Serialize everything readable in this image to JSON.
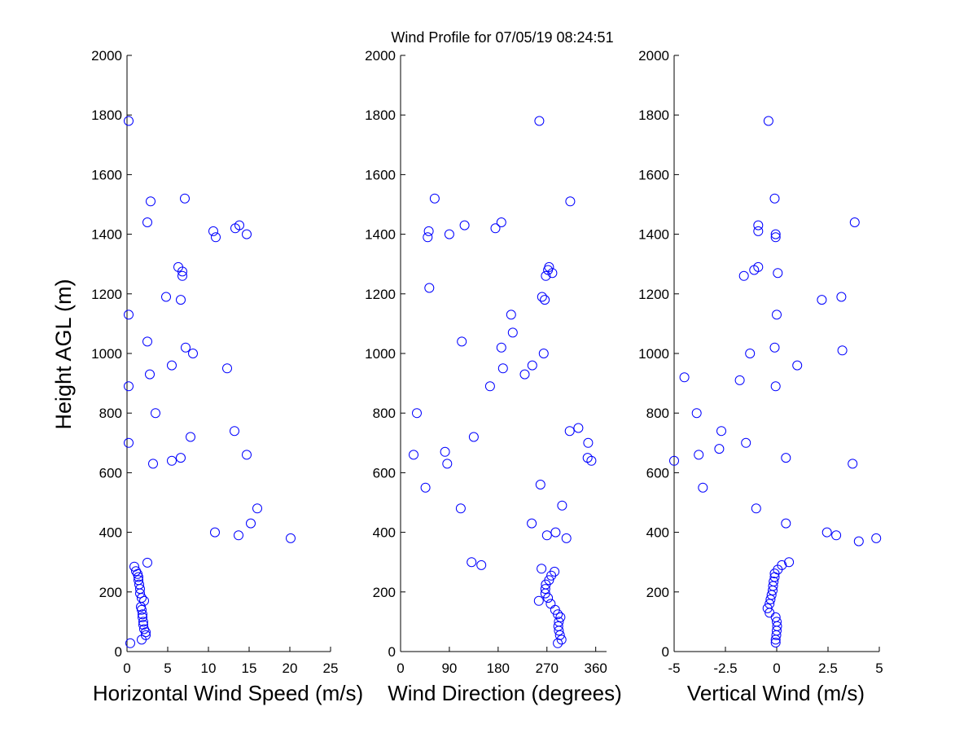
{
  "title": "Wind Profile for  07/05/19 08:24:51",
  "chart_data": [
    {
      "type": "scatter",
      "name": "horizontal-wind-speed",
      "xlabel": "Horizontal Wind Speed (m/s)",
      "ylabel": "Height AGL (m)",
      "xlim": [
        0,
        25
      ],
      "ylim": [
        0,
        2000
      ],
      "xticks": [
        0,
        5,
        10,
        15,
        20,
        25
      ],
      "xtick_labels": [
        "0",
        "5",
        "10",
        "15",
        "20",
        "25"
      ],
      "yticks": [
        0,
        200,
        400,
        600,
        800,
        1000,
        1200,
        1400,
        1600,
        1800,
        2000
      ],
      "ytick_labels": [
        "0",
        "200",
        "400",
        "600",
        "800",
        "1000",
        "1200",
        "1400",
        "1600",
        "1800",
        "2000"
      ],
      "marker_color": "#0000ff",
      "points": [
        [
          0.4,
          28
        ],
        [
          1.8,
          40
        ],
        [
          2.3,
          55
        ],
        [
          2.3,
          65
        ],
        [
          2.1,
          75
        ],
        [
          2.0,
          90
        ],
        [
          2.0,
          100
        ],
        [
          1.9,
          115
        ],
        [
          1.9,
          125
        ],
        [
          1.8,
          140
        ],
        [
          1.7,
          150
        ],
        [
          2.1,
          170
        ],
        [
          1.8,
          180
        ],
        [
          1.6,
          195
        ],
        [
          1.6,
          210
        ],
        [
          1.5,
          225
        ],
        [
          1.4,
          240
        ],
        [
          1.4,
          250
        ],
        [
          1.3,
          260
        ],
        [
          1.1,
          270
        ],
        [
          0.9,
          285
        ],
        [
          2.5,
          298
        ],
        [
          10.8,
          400
        ],
        [
          13.7,
          390
        ],
        [
          20.1,
          380
        ],
        [
          15.2,
          430
        ],
        [
          16.0,
          480
        ],
        [
          5.5,
          640
        ],
        [
          6.6,
          650
        ],
        [
          3.2,
          630
        ],
        [
          14.7,
          660
        ],
        [
          0.2,
          700
        ],
        [
          7.8,
          720
        ],
        [
          13.2,
          740
        ],
        [
          3.5,
          800
        ],
        [
          0.2,
          890
        ],
        [
          2.8,
          930
        ],
        [
          5.5,
          960
        ],
        [
          12.3,
          950
        ],
        [
          7.2,
          1020
        ],
        [
          8.1,
          1000
        ],
        [
          2.5,
          1040
        ],
        [
          0.2,
          1130
        ],
        [
          6.6,
          1180
        ],
        [
          4.8,
          1190
        ],
        [
          6.8,
          1260
        ],
        [
          6.8,
          1275
        ],
        [
          6.3,
          1290
        ],
        [
          10.9,
          1390
        ],
        [
          14.7,
          1400
        ],
        [
          10.6,
          1410
        ],
        [
          13.3,
          1420
        ],
        [
          13.8,
          1430
        ],
        [
          2.5,
          1440
        ],
        [
          2.9,
          1510
        ],
        [
          7.1,
          1520
        ],
        [
          0.2,
          1780
        ]
      ]
    },
    {
      "type": "scatter",
      "name": "wind-direction",
      "xlabel": "Wind Direction (degrees)",
      "ylabel": "",
      "xlim": [
        0,
        380
      ],
      "ylim": [
        0,
        2000
      ],
      "xticks": [
        0,
        90,
        180,
        270,
        360
      ],
      "xtick_labels": [
        "0",
        "90",
        "180",
        "270",
        "360"
      ],
      "yticks": [
        0,
        200,
        400,
        600,
        800,
        1000,
        1200,
        1400,
        1600,
        1800,
        2000
      ],
      "ytick_labels": [
        "0",
        "200",
        "400",
        "600",
        "800",
        "1000",
        "1200",
        "1400",
        "1600",
        "1800",
        "2000"
      ],
      "marker_color": "#0000ff",
      "points": [
        [
          290,
          28
        ],
        [
          297,
          40
        ],
        [
          294,
          55
        ],
        [
          292,
          70
        ],
        [
          291,
          85
        ],
        [
          292,
          100
        ],
        [
          295,
          115
        ],
        [
          290,
          125
        ],
        [
          285,
          140
        ],
        [
          277,
          160
        ],
        [
          255,
          170
        ],
        [
          272,
          180
        ],
        [
          267,
          195
        ],
        [
          267,
          210
        ],
        [
          268,
          225
        ],
        [
          274,
          240
        ],
        [
          278,
          255
        ],
        [
          284,
          268
        ],
        [
          260,
          278
        ],
        [
          131,
          300
        ],
        [
          149,
          290
        ],
        [
          242,
          430
        ],
        [
          270,
          390
        ],
        [
          306,
          380
        ],
        [
          286,
          400
        ],
        [
          298,
          490
        ],
        [
          111,
          480
        ],
        [
          24,
          660
        ],
        [
          82,
          670
        ],
        [
          86,
          630
        ],
        [
          258,
          560
        ],
        [
          46,
          550
        ],
        [
          135,
          720
        ],
        [
          30,
          800
        ],
        [
          312,
          740
        ],
        [
          328,
          750
        ],
        [
          346,
          700
        ],
        [
          345,
          650
        ],
        [
          352,
          640
        ],
        [
          165,
          890
        ],
        [
          229,
          930
        ],
        [
          189,
          950
        ],
        [
          243,
          960
        ],
        [
          264,
          1000
        ],
        [
          186,
          1020
        ],
        [
          207,
          1070
        ],
        [
          113,
          1040
        ],
        [
          204,
          1130
        ],
        [
          266,
          1180
        ],
        [
          261,
          1190
        ],
        [
          268,
          1260
        ],
        [
          280,
          1270
        ],
        [
          272,
          1280
        ],
        [
          274,
          1290
        ],
        [
          50,
          1390
        ],
        [
          90,
          1400
        ],
        [
          52,
          1410
        ],
        [
          175,
          1420
        ],
        [
          118,
          1430
        ],
        [
          186,
          1440
        ],
        [
          53,
          1220
        ],
        [
          63,
          1520
        ],
        [
          313,
          1510
        ],
        [
          256,
          1780
        ]
      ]
    },
    {
      "type": "scatter",
      "name": "vertical-wind",
      "xlabel": "Vertical Wind (m/s)",
      "ylabel": "",
      "xlim": [
        -5,
        5
      ],
      "ylim": [
        0,
        2000
      ],
      "xticks": [
        -5,
        -2.5,
        0,
        2.5,
        5
      ],
      "xtick_labels": [
        "-5",
        "-2.5",
        "0",
        "2.5",
        "5"
      ],
      "yticks": [
        0,
        200,
        400,
        600,
        800,
        1000,
        1200,
        1400,
        1600,
        1800,
        2000
      ],
      "ytick_labels": [
        "0",
        "200",
        "400",
        "600",
        "800",
        "1000",
        "1200",
        "1400",
        "1600",
        "1800",
        "2000"
      ],
      "marker_color": "#0000ff",
      "points": [
        [
          -0.05,
          30
        ],
        [
          -0.05,
          40
        ],
        [
          -0.02,
          55
        ],
        [
          0,
          70
        ],
        [
          0.02,
          85
        ],
        [
          0,
          100
        ],
        [
          -0.05,
          115
        ],
        [
          -0.35,
          130
        ],
        [
          -0.45,
          145
        ],
        [
          -0.35,
          160
        ],
        [
          -0.3,
          175
        ],
        [
          -0.25,
          190
        ],
        [
          -0.2,
          205
        ],
        [
          -0.18,
          220
        ],
        [
          -0.15,
          235
        ],
        [
          -0.1,
          250
        ],
        [
          -0.1,
          262
        ],
        [
          0.05,
          275
        ],
        [
          0.25,
          290
        ],
        [
          0.6,
          300
        ],
        [
          0.45,
          430
        ],
        [
          2.45,
          400
        ],
        [
          2.9,
          390
        ],
        [
          4.0,
          370
        ],
        [
          4.85,
          380
        ],
        [
          -1.0,
          480
        ],
        [
          -3.6,
          550
        ],
        [
          -5.0,
          640
        ],
        [
          -3.8,
          660
        ],
        [
          0.45,
          650
        ],
        [
          3.7,
          630
        ],
        [
          -2.8,
          680
        ],
        [
          -1.5,
          700
        ],
        [
          -2.7,
          740
        ],
        [
          -3.9,
          800
        ],
        [
          -4.5,
          920
        ],
        [
          -1.8,
          910
        ],
        [
          -0.05,
          890
        ],
        [
          1.0,
          960
        ],
        [
          -1.3,
          1000
        ],
        [
          -0.1,
          1020
        ],
        [
          3.2,
          1010
        ],
        [
          0,
          1130
        ],
        [
          2.2,
          1180
        ],
        [
          3.15,
          1190
        ],
        [
          -1.6,
          1260
        ],
        [
          0.05,
          1270
        ],
        [
          -1.1,
          1280
        ],
        [
          -0.9,
          1290
        ],
        [
          -0.05,
          1390
        ],
        [
          -0.05,
          1400
        ],
        [
          -0.9,
          1410
        ],
        [
          -0.9,
          1430
        ],
        [
          3.8,
          1440
        ],
        [
          -0.1,
          1520
        ],
        [
          -0.4,
          1780
        ]
      ]
    }
  ]
}
